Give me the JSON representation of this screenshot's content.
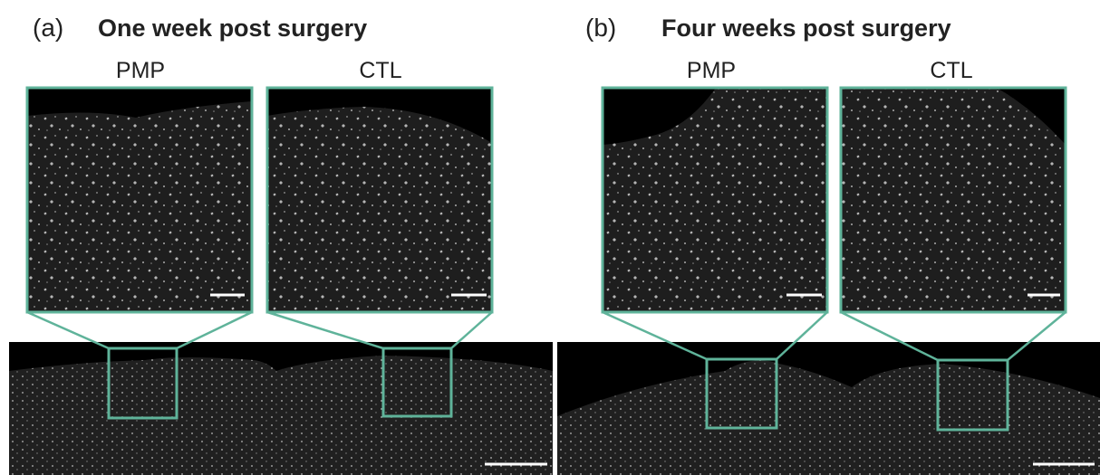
{
  "panels": [
    {
      "label": "(a)",
      "title": "One week post surgery",
      "insets": [
        "PMP",
        "CTL"
      ]
    },
    {
      "label": "(b)",
      "title": "Four weeks post surgery",
      "insets": [
        "PMP",
        "CTL"
      ]
    }
  ]
}
